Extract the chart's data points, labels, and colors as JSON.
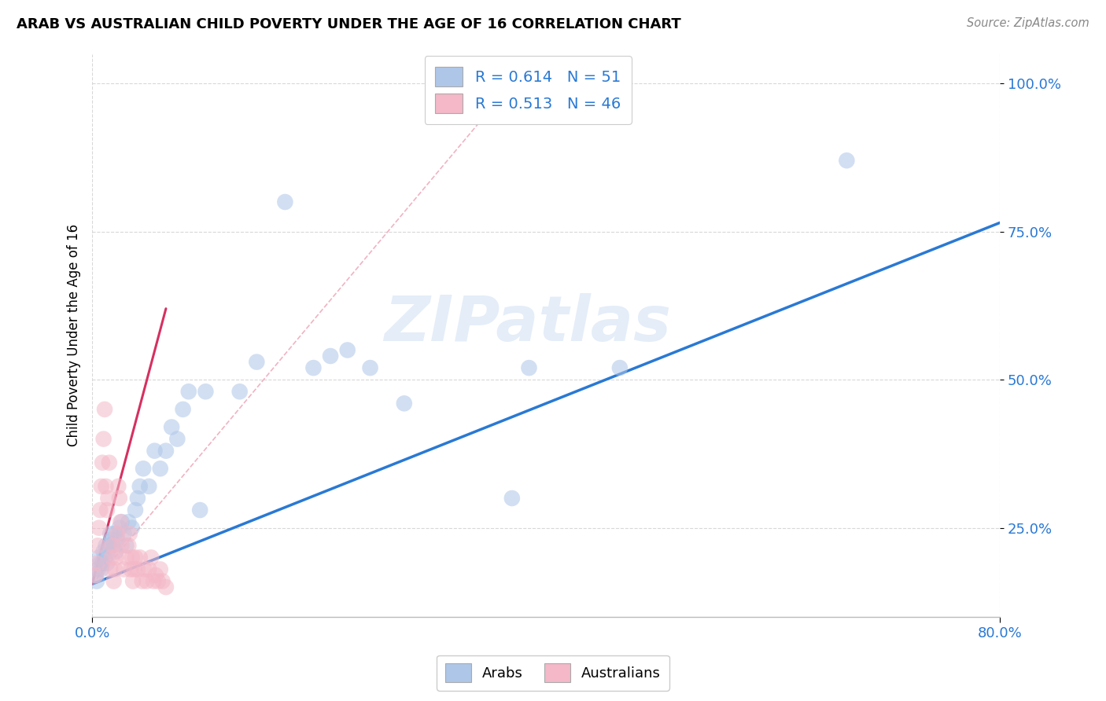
{
  "title": "ARAB VS AUSTRALIAN CHILD POVERTY UNDER THE AGE OF 16 CORRELATION CHART",
  "source": "Source: ZipAtlas.com",
  "ylabel": "Child Poverty Under the Age of 16",
  "yticks_labels": [
    "25.0%",
    "50.0%",
    "75.0%",
    "100.0%"
  ],
  "ytick_vals": [
    0.25,
    0.5,
    0.75,
    1.0
  ],
  "xlim": [
    0.0,
    0.8
  ],
  "ylim": [
    0.1,
    1.05
  ],
  "legend_arab_r": "0.614",
  "legend_arab_n": "51",
  "legend_aus_r": "0.513",
  "legend_aus_n": "46",
  "arab_color": "#aec6e8",
  "aus_color": "#f4b8c8",
  "trendline_arab_color": "#2979d4",
  "trendline_aus_color": "#d63060",
  "ref_line_color": "#f0aabb",
  "watermark": "ZIPatlas",
  "arab_x": [
    0.003,
    0.004,
    0.005,
    0.006,
    0.007,
    0.008,
    0.009,
    0.01,
    0.011,
    0.012,
    0.013,
    0.014,
    0.015,
    0.016,
    0.017,
    0.018,
    0.02,
    0.021,
    0.022,
    0.024,
    0.026,
    0.028,
    0.03,
    0.032,
    0.035,
    0.038,
    0.04,
    0.042,
    0.045,
    0.05,
    0.055,
    0.06,
    0.065,
    0.07,
    0.075,
    0.08,
    0.085,
    0.095,
    0.1,
    0.13,
    0.145,
    0.17,
    0.195,
    0.21,
    0.225,
    0.245,
    0.275,
    0.37,
    0.385,
    0.465,
    0.665
  ],
  "arab_y": [
    0.17,
    0.16,
    0.18,
    0.2,
    0.19,
    0.18,
    0.19,
    0.21,
    0.2,
    0.22,
    0.19,
    0.21,
    0.22,
    0.24,
    0.23,
    0.22,
    0.24,
    0.21,
    0.23,
    0.25,
    0.26,
    0.24,
    0.22,
    0.26,
    0.25,
    0.28,
    0.3,
    0.32,
    0.35,
    0.32,
    0.38,
    0.35,
    0.38,
    0.42,
    0.4,
    0.45,
    0.48,
    0.28,
    0.48,
    0.48,
    0.53,
    0.8,
    0.52,
    0.54,
    0.55,
    0.52,
    0.46,
    0.3,
    0.52,
    0.52,
    0.87
  ],
  "aus_x": [
    0.003,
    0.004,
    0.005,
    0.006,
    0.007,
    0.008,
    0.009,
    0.01,
    0.011,
    0.012,
    0.013,
    0.014,
    0.015,
    0.016,
    0.017,
    0.018,
    0.019,
    0.02,
    0.021,
    0.022,
    0.023,
    0.024,
    0.025,
    0.026,
    0.028,
    0.03,
    0.032,
    0.033,
    0.034,
    0.035,
    0.036,
    0.037,
    0.038,
    0.04,
    0.042,
    0.044,
    0.046,
    0.048,
    0.05,
    0.052,
    0.054,
    0.056,
    0.058,
    0.06,
    0.062,
    0.065
  ],
  "aus_y": [
    0.17,
    0.19,
    0.22,
    0.25,
    0.28,
    0.32,
    0.36,
    0.4,
    0.45,
    0.32,
    0.28,
    0.3,
    0.36,
    0.18,
    0.2,
    0.22,
    0.16,
    0.18,
    0.2,
    0.24,
    0.32,
    0.3,
    0.26,
    0.22,
    0.18,
    0.2,
    0.22,
    0.24,
    0.18,
    0.2,
    0.16,
    0.18,
    0.2,
    0.18,
    0.2,
    0.16,
    0.18,
    0.16,
    0.18,
    0.2,
    0.16,
    0.17,
    0.16,
    0.18,
    0.16,
    0.15
  ],
  "arab_trendline_x": [
    0.0,
    0.8
  ],
  "arab_trendline_y": [
    0.155,
    0.765
  ],
  "aus_trendline_x": [
    0.0,
    0.065
  ],
  "aus_trendline_y": [
    0.155,
    0.62
  ],
  "ref_line_x": [
    0.0,
    0.37
  ],
  "ref_line_y": [
    0.155,
    1.0
  ]
}
